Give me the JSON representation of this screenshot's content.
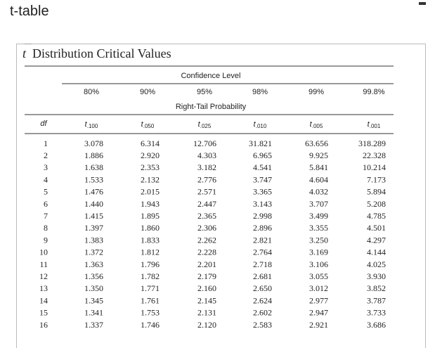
{
  "header": {
    "title": "t-table"
  },
  "table": {
    "title_var": "t",
    "title": "Distribution Critical Values",
    "confidence_label": "Confidence Level",
    "percent_labels": [
      "80%",
      "90%",
      "95%",
      "98%",
      "99%",
      "99.8%"
    ],
    "tail_label": "Right-Tail Probability",
    "df_label": "df",
    "columns": [
      {
        "symbol": "t",
        "subscript": ".100"
      },
      {
        "symbol": "t",
        "subscript": ".050"
      },
      {
        "symbol": "t",
        "subscript": ".025"
      },
      {
        "symbol": "t",
        "subscript": ".010"
      },
      {
        "symbol": "t",
        "subscript": ".005"
      },
      {
        "symbol": "t",
        "subscript": ".001"
      }
    ],
    "rows": [
      [
        "1",
        "3.078",
        "6.314",
        "12.706",
        "31.821",
        "63.656",
        "318.289"
      ],
      [
        "2",
        "1.886",
        "2.920",
        "4.303",
        "6.965",
        "9.925",
        "22.328"
      ],
      [
        "3",
        "1.638",
        "2.353",
        "3.182",
        "4.541",
        "5.841",
        "10.214"
      ],
      [
        "4",
        "1.533",
        "2.132",
        "2.776",
        "3.747",
        "4.604",
        "7.173"
      ],
      [
        "5",
        "1.476",
        "2.015",
        "2.571",
        "3.365",
        "4.032",
        "5.894"
      ],
      [
        "6",
        "1.440",
        "1.943",
        "2.447",
        "3.143",
        "3.707",
        "5.208"
      ],
      [
        "7",
        "1.415",
        "1.895",
        "2.365",
        "2.998",
        "3.499",
        "4.785"
      ],
      [
        "8",
        "1.397",
        "1.860",
        "2.306",
        "2.896",
        "3.355",
        "4.501"
      ],
      [
        "9",
        "1.383",
        "1.833",
        "2.262",
        "2.821",
        "3.250",
        "4.297"
      ],
      [
        "10",
        "1.372",
        "1.812",
        "2.228",
        "2.764",
        "3.169",
        "4.144"
      ],
      [
        "11",
        "1.363",
        "1.796",
        "2.201",
        "2.718",
        "3.106",
        "4.025"
      ],
      [
        "12",
        "1.356",
        "1.782",
        "2.179",
        "2.681",
        "3.055",
        "3.930"
      ],
      [
        "13",
        "1.350",
        "1.771",
        "2.160",
        "2.650",
        "3.012",
        "3.852"
      ],
      [
        "14",
        "1.345",
        "1.761",
        "2.145",
        "2.624",
        "2.977",
        "3.787"
      ],
      [
        "15",
        "1.341",
        "1.753",
        "2.131",
        "2.602",
        "2.947",
        "3.733"
      ],
      [
        "16",
        "1.337",
        "1.746",
        "2.120",
        "2.583",
        "2.921",
        "3.686"
      ]
    ]
  }
}
